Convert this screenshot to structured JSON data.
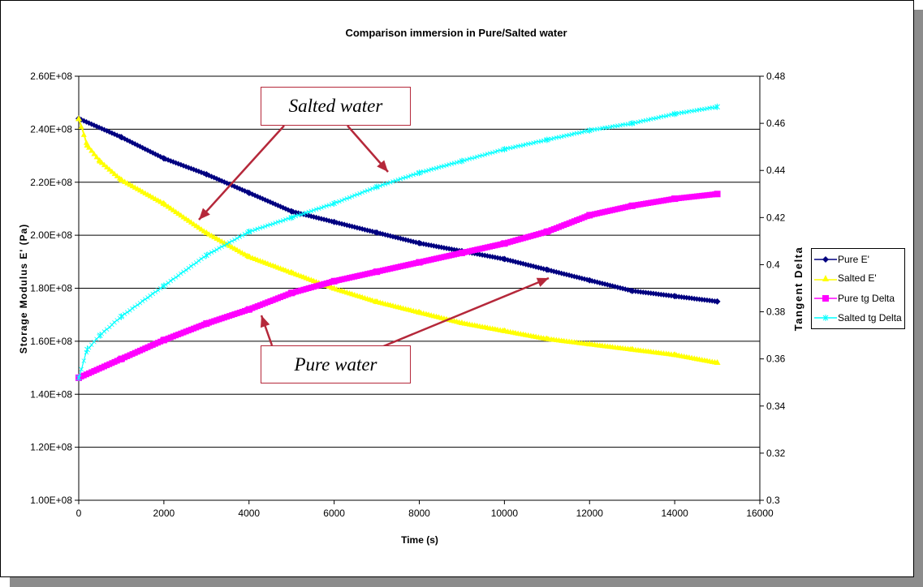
{
  "chart_data": {
    "type": "line",
    "title": "Comparison immersion in Pure/Salted water",
    "xlabel": "Time (s)",
    "ylabel": "Storage Modulus E' (Pa)",
    "y2label": "Tangent Delta",
    "xlim": [
      0,
      16000
    ],
    "ylim": [
      100000000.0,
      260000000.0
    ],
    "y2lim": [
      0.3,
      0.48
    ],
    "x_ticks": [
      "0",
      "2000",
      "4000",
      "6000",
      "8000",
      "10000",
      "12000",
      "14000",
      "16000"
    ],
    "y_ticks": [
      "1.00E+08",
      "1.20E+08",
      "1.40E+08",
      "1.60E+08",
      "1.80E+08",
      "2.00E+08",
      "2.20E+08",
      "2.40E+08",
      "2.60E+08"
    ],
    "y2_ticks": [
      "0.3",
      "0.32",
      "0.34",
      "0.36",
      "0.38",
      "0.4",
      "0.42",
      "0.44",
      "0.46",
      "0.48"
    ],
    "grid": "horizontal major",
    "legend_position": "right",
    "series": [
      {
        "name": "Pure E'",
        "axis": "left",
        "color": "#000080",
        "marker": "diamond",
        "x": [
          0,
          1000,
          2000,
          3000,
          4000,
          5000,
          6000,
          7000,
          8000,
          9000,
          10000,
          11000,
          12000,
          13000,
          14000,
          15000
        ],
        "y": [
          244000000.0,
          237000000.0,
          229000000.0,
          223000000.0,
          216000000.0,
          209000000.0,
          205000000.0,
          201000000.0,
          197000000.0,
          194000000.0,
          191000000.0,
          187000000.0,
          183000000.0,
          179000000.0,
          177000000.0,
          175000000.0
        ]
      },
      {
        "name": "Salted E'",
        "axis": "left",
        "color": "#ffff00",
        "marker": "triangle",
        "x": [
          0,
          200,
          500,
          1000,
          2000,
          3000,
          4000,
          5000,
          6000,
          7000,
          8000,
          9000,
          10000,
          11000,
          12000,
          13000,
          14000,
          15000
        ],
        "y": [
          244000000.0,
          234000000.0,
          228000000.0,
          221000000.0,
          212000000.0,
          201000000.0,
          192000000.0,
          186000000.0,
          180000000.0,
          175000000.0,
          171000000.0,
          167000000.0,
          164000000.0,
          161000000.0,
          159000000.0,
          157000000.0,
          155000000.0,
          152000000.0
        ]
      },
      {
        "name": "Pure tg Delta",
        "axis": "right",
        "color": "#ff00ff",
        "marker": "square",
        "x": [
          0,
          1000,
          2000,
          3000,
          4000,
          5000,
          6000,
          7000,
          8000,
          9000,
          10000,
          11000,
          12000,
          13000,
          14000,
          15000
        ],
        "y": [
          0.352,
          0.36,
          0.368,
          0.375,
          0.381,
          0.388,
          0.393,
          0.397,
          0.401,
          0.405,
          0.409,
          0.414,
          0.421,
          0.425,
          0.428,
          0.43
        ]
      },
      {
        "name": "Salted tg Delta",
        "axis": "right",
        "color": "#00ffff",
        "marker": "star",
        "x": [
          0,
          200,
          500,
          1000,
          2000,
          3000,
          4000,
          5000,
          6000,
          7000,
          8000,
          9000,
          10000,
          11000,
          12000,
          13000,
          14000,
          15000
        ],
        "y": [
          0.352,
          0.364,
          0.37,
          0.378,
          0.391,
          0.404,
          0.414,
          0.42,
          0.426,
          0.433,
          0.439,
          0.444,
          0.449,
          0.453,
          0.457,
          0.46,
          0.464,
          0.467
        ]
      }
    ],
    "annotations": [
      "Salted water",
      "Pure water"
    ]
  }
}
